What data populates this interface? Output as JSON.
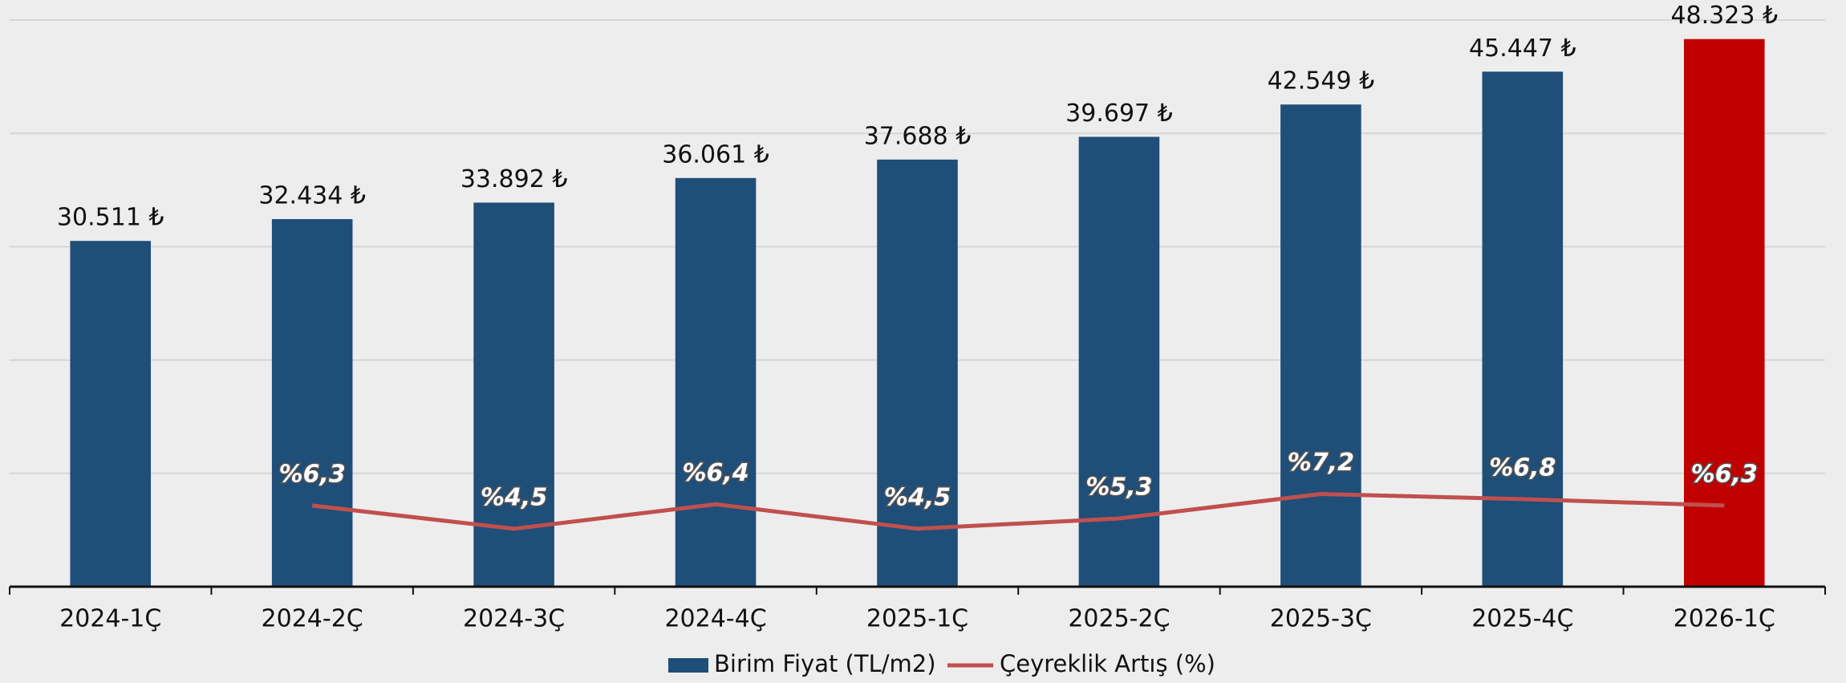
{
  "chart_data": {
    "type": "bar_line",
    "categories": [
      "2024-1Ç",
      "2024-2Ç",
      "2024-3Ç",
      "2024-4Ç",
      "2025-1Ç",
      "2025-2Ç",
      "2025-3Ç",
      "2025-4Ç",
      "2026-1Ç"
    ],
    "series": [
      {
        "name": "Birim Fiyat (TL/m2)",
        "type": "bar",
        "color": "#1f4e79",
        "colors": [
          "#1f4e79",
          "#1f4e79",
          "#1f4e79",
          "#1f4e79",
          "#1f4e79",
          "#1f4e79",
          "#1f4e79",
          "#1f4e79",
          "#c00000"
        ],
        "values": [
          30511,
          32434,
          33892,
          36061,
          37688,
          39697,
          42549,
          45447,
          48323
        ],
        "value_labels": [
          "30.511 ₺",
          "32.434 ₺",
          "33.892 ₺",
          "36.061 ₺",
          "37.688 ₺",
          "39.697 ₺",
          "42.549 ₺",
          "45.447 ₺",
          "48.323 ₺"
        ]
      },
      {
        "name": "Çeyreklik Artış (%)",
        "type": "line",
        "axis": "y2",
        "color": "#c0504d",
        "values": [
          null,
          6.3,
          4.5,
          6.4,
          4.5,
          5.3,
          7.2,
          6.8,
          6.3
        ],
        "value_labels": [
          null,
          "%6,3",
          "%4,5",
          "%6,4",
          "%4,5",
          "%5,3",
          "%7,2",
          "%6,8",
          "%6,3"
        ]
      }
    ],
    "ylim": [
      0,
      50000
    ],
    "yticks": [
      0,
      10000,
      20000,
      30000,
      40000,
      50000
    ],
    "y2lim": [
      0,
      44
    ],
    "grid": true,
    "legend": "bottom"
  }
}
